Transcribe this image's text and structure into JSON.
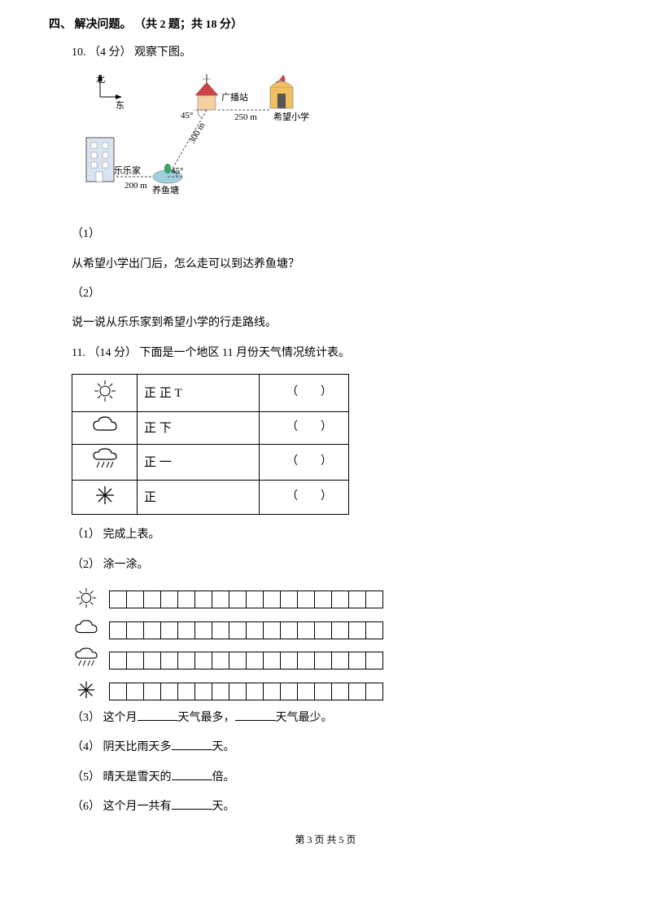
{
  "section": {
    "title": "四、 解决问题。 （共 2 题；共 18 分）"
  },
  "q10": {
    "header": "10.  （4 分）  观察下图。",
    "compass_north": "北",
    "compass_east": "东",
    "broadcast": "广播站",
    "school": "希望小学",
    "home": "乐乐家",
    "pond": "养鱼塘",
    "d250": "250 m",
    "d300": "300 m",
    "d200": "200 m",
    "a45a": "45°",
    "a45b": "45°",
    "sub1_label": "（1）",
    "sub1_text": "从希望小学出门后，怎么走可以到达养鱼塘？",
    "sub2_label": "（2）",
    "sub2_text": "说一说从乐乐家到希望小学的行走路线。"
  },
  "q11": {
    "header": "11.  （14 分）  下面是一个地区 11 月份天气情况统计表。",
    "table": {
      "rows": [
        {
          "icon": "sun",
          "tally": "正 正 T",
          "paren": "（　　）"
        },
        {
          "icon": "cloud",
          "tally": "正 下",
          "paren": "（　　）"
        },
        {
          "icon": "rain",
          "tally": "正 一",
          "paren": "（　　）"
        },
        {
          "icon": "snow",
          "tally": "正",
          "paren": "（　　）"
        }
      ]
    },
    "sub1": "（1）  完成上表。",
    "sub2": "（2）  涂一涂。",
    "chart": {
      "icons": [
        "sun",
        "cloud",
        "rain",
        "snow"
      ],
      "box_count": 16
    },
    "sub3_a": "（3）  这个月",
    "sub3_b": "天气最多，",
    "sub3_c": "天气最少。",
    "sub4_a": "（4）  阴天比雨天多",
    "sub4_b": "天。",
    "sub5_a": "（5）  晴天是雪天的",
    "sub5_b": "倍。",
    "sub6_a": "（6）  这个月一共有",
    "sub6_b": "天。"
  },
  "footer": {
    "text": "第 3 页 共 5 页"
  }
}
